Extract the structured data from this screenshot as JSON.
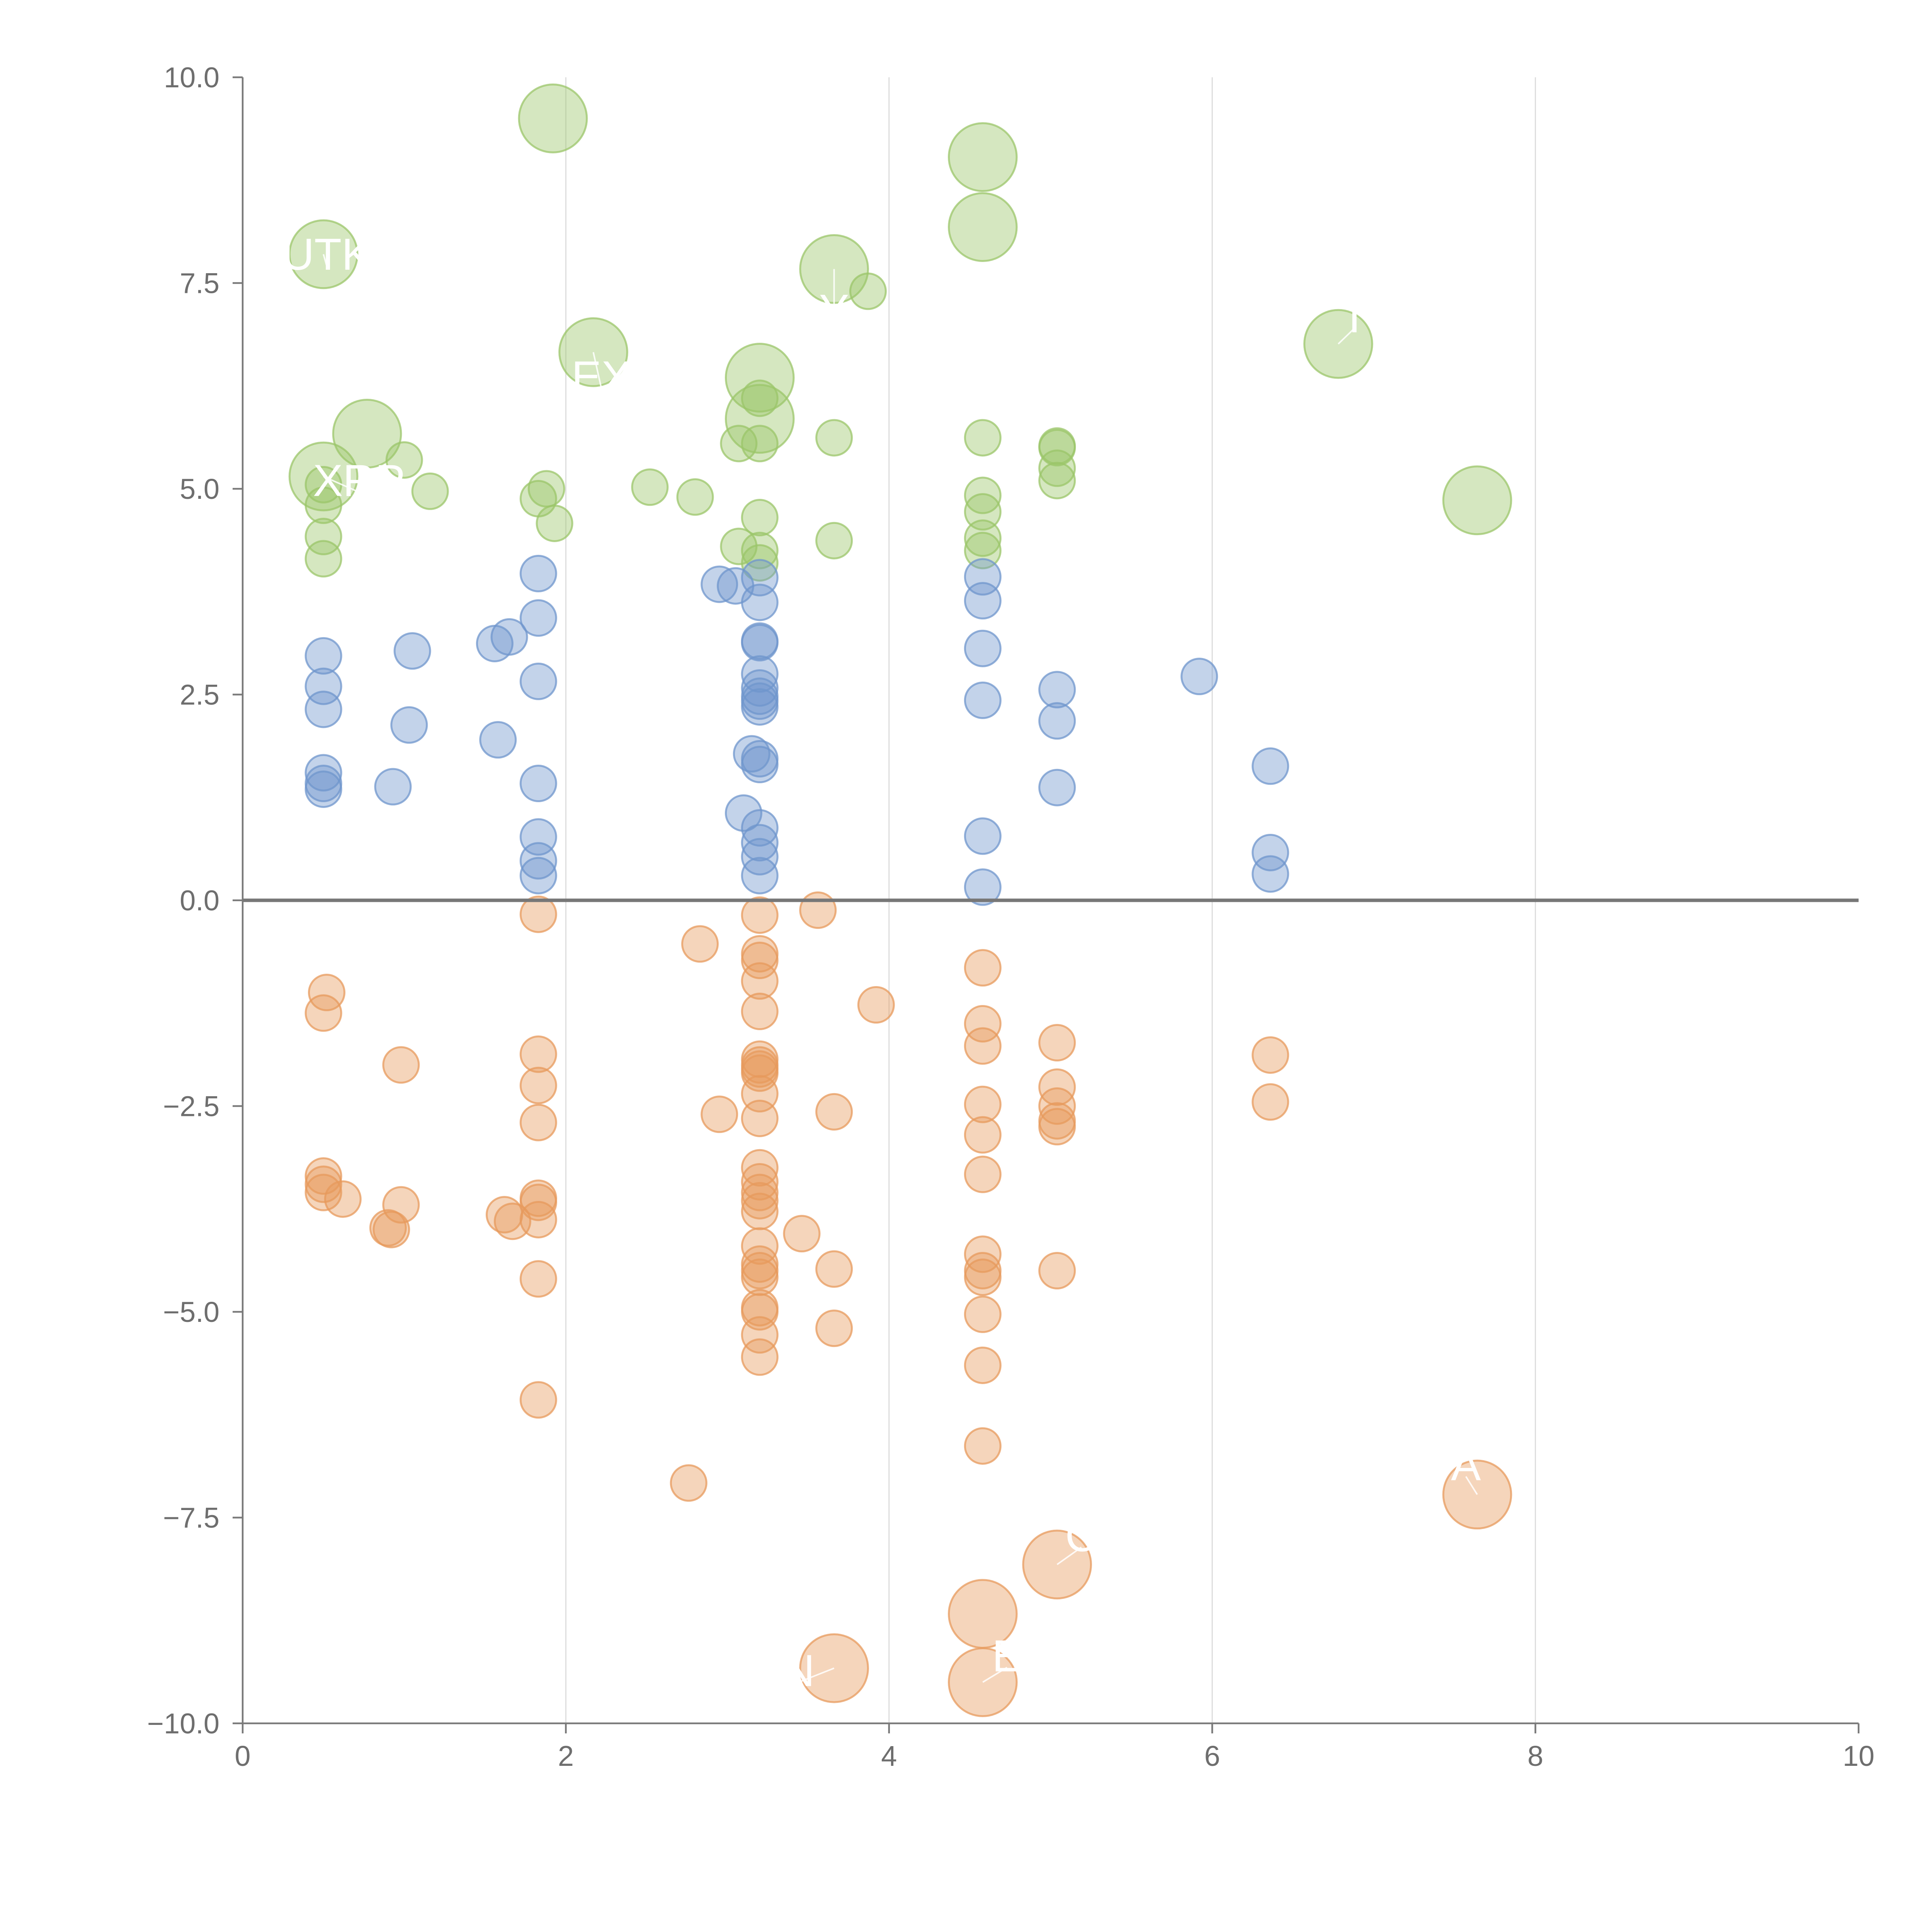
{
  "chart_data": {
    "type": "scatter",
    "title": "",
    "xlabel": "",
    "ylabel": "",
    "xlim": [
      0,
      10
    ],
    "ylim": [
      -10,
      10
    ],
    "x_ticks": [
      "0",
      "2",
      "4",
      "6",
      "8",
      "10"
    ],
    "y_ticks": [
      "10.0",
      "7.5",
      "5.0",
      "2.5",
      "0.0",
      "−2.5",
      "−5.0",
      "−7.5",
      "−10.0"
    ],
    "colors": {
      "green": "#9bc56a",
      "blue": "#6f96cc",
      "orange": "#e79a5c"
    },
    "series": [
      {
        "name": "green",
        "color": "#9bc56a",
        "points": [
          {
            "x": 0.5,
            "y": 4.15,
            "r": 0.11
          },
          {
            "x": 0.5,
            "y": 4.42,
            "r": 0.11
          },
          {
            "x": 0.5,
            "y": 4.8,
            "r": 0.11
          },
          {
            "x": 0.5,
            "y": 5.05,
            "r": 0.11
          },
          {
            "x": 1.0,
            "y": 5.35,
            "r": 0.11
          },
          {
            "x": 1.16,
            "y": 4.97,
            "r": 0.11
          },
          {
            "x": 1.83,
            "y": 4.88,
            "r": 0.11
          },
          {
            "x": 1.88,
            "y": 5.0,
            "r": 0.11
          },
          {
            "x": 1.93,
            "y": 4.58,
            "r": 0.11
          },
          {
            "x": 2.52,
            "y": 5.02,
            "r": 0.11
          },
          {
            "x": 2.8,
            "y": 4.9,
            "r": 0.11
          },
          {
            "x": 3.07,
            "y": 4.3,
            "r": 0.11
          },
          {
            "x": 3.07,
            "y": 5.55,
            "r": 0.11
          },
          {
            "x": 3.2,
            "y": 4.1,
            "r": 0.11
          },
          {
            "x": 3.2,
            "y": 4.25,
            "r": 0.11
          },
          {
            "x": 3.2,
            "y": 4.65,
            "r": 0.11
          },
          {
            "x": 3.2,
            "y": 5.55,
            "r": 0.11
          },
          {
            "x": 3.2,
            "y": 6.1,
            "r": 0.11
          },
          {
            "x": 3.66,
            "y": 4.37,
            "r": 0.11
          },
          {
            "x": 3.66,
            "y": 5.62,
            "r": 0.11
          },
          {
            "x": 3.87,
            "y": 7.4,
            "r": 0.11
          },
          {
            "x": 4.58,
            "y": 4.25,
            "r": 0.11
          },
          {
            "x": 4.58,
            "y": 4.4,
            "r": 0.11
          },
          {
            "x": 4.58,
            "y": 4.72,
            "r": 0.11
          },
          {
            "x": 4.58,
            "y": 4.92,
            "r": 0.11
          },
          {
            "x": 4.58,
            "y": 5.62,
            "r": 0.11
          },
          {
            "x": 5.04,
            "y": 5.1,
            "r": 0.11
          },
          {
            "x": 5.04,
            "y": 5.25,
            "r": 0.11
          },
          {
            "x": 5.04,
            "y": 5.5,
            "r": 0.11
          },
          {
            "x": 5.04,
            "y": 5.52,
            "r": 0.11
          },
          {
            "x": 0.5,
            "y": 7.85,
            "r": 0.21
          },
          {
            "x": 0.5,
            "y": 5.15,
            "r": 0.21
          },
          {
            "x": 0.77,
            "y": 5.67,
            "r": 0.21
          },
          {
            "x": 1.92,
            "y": 9.5,
            "r": 0.21
          },
          {
            "x": 2.17,
            "y": 6.66,
            "r": 0.21
          },
          {
            "x": 3.2,
            "y": 6.35,
            "r": 0.21
          },
          {
            "x": 3.2,
            "y": 5.85,
            "r": 0.21
          },
          {
            "x": 3.66,
            "y": 7.67,
            "r": 0.21
          },
          {
            "x": 4.58,
            "y": 9.03,
            "r": 0.21
          },
          {
            "x": 4.58,
            "y": 8.18,
            "r": 0.21
          },
          {
            "x": 6.78,
            "y": 6.76,
            "r": 0.21
          },
          {
            "x": 7.64,
            "y": 4.86,
            "r": 0.21
          }
        ]
      },
      {
        "name": "blue",
        "color": "#6f96cc",
        "points": [
          {
            "x": 0.5,
            "y": 1.35,
            "r": 0.11
          },
          {
            "x": 0.5,
            "y": 1.42,
            "r": 0.11
          },
          {
            "x": 0.5,
            "y": 1.55,
            "r": 0.11
          },
          {
            "x": 0.5,
            "y": 2.32,
            "r": 0.11
          },
          {
            "x": 0.5,
            "y": 2.6,
            "r": 0.11
          },
          {
            "x": 0.5,
            "y": 2.97,
            "r": 0.11
          },
          {
            "x": 0.93,
            "y": 1.38,
            "r": 0.11
          },
          {
            "x": 1.03,
            "y": 2.13,
            "r": 0.11
          },
          {
            "x": 1.05,
            "y": 3.03,
            "r": 0.11
          },
          {
            "x": 1.56,
            "y": 3.12,
            "r": 0.11
          },
          {
            "x": 1.58,
            "y": 1.95,
            "r": 0.11
          },
          {
            "x": 1.65,
            "y": 3.2,
            "r": 0.11
          },
          {
            "x": 1.83,
            "y": 0.3,
            "r": 0.11
          },
          {
            "x": 1.83,
            "y": 0.48,
            "r": 0.11
          },
          {
            "x": 1.83,
            "y": 0.77,
            "r": 0.11
          },
          {
            "x": 1.83,
            "y": 1.42,
            "r": 0.11
          },
          {
            "x": 1.83,
            "y": 2.66,
            "r": 0.11
          },
          {
            "x": 1.83,
            "y": 3.43,
            "r": 0.11
          },
          {
            "x": 1.83,
            "y": 3.97,
            "r": 0.11
          },
          {
            "x": 2.95,
            "y": 3.84,
            "r": 0.11
          },
          {
            "x": 3.05,
            "y": 3.82,
            "r": 0.11
          },
          {
            "x": 3.1,
            "y": 1.06,
            "r": 0.11
          },
          {
            "x": 3.15,
            "y": 1.78,
            "r": 0.11
          },
          {
            "x": 3.2,
            "y": 0.3,
            "r": 0.11
          },
          {
            "x": 3.2,
            "y": 0.53,
            "r": 0.11
          },
          {
            "x": 3.2,
            "y": 0.7,
            "r": 0.11
          },
          {
            "x": 3.2,
            "y": 0.88,
            "r": 0.11
          },
          {
            "x": 3.2,
            "y": 1.65,
            "r": 0.11
          },
          {
            "x": 3.2,
            "y": 1.72,
            "r": 0.11
          },
          {
            "x": 3.2,
            "y": 2.35,
            "r": 0.11
          },
          {
            "x": 3.2,
            "y": 2.42,
            "r": 0.11
          },
          {
            "x": 3.2,
            "y": 2.48,
            "r": 0.11
          },
          {
            "x": 3.2,
            "y": 2.58,
            "r": 0.11
          },
          {
            "x": 3.2,
            "y": 2.75,
            "r": 0.11
          },
          {
            "x": 3.2,
            "y": 3.13,
            "r": 0.11
          },
          {
            "x": 3.2,
            "y": 3.15,
            "r": 0.11
          },
          {
            "x": 3.2,
            "y": 3.62,
            "r": 0.11
          },
          {
            "x": 3.2,
            "y": 3.92,
            "r": 0.11
          },
          {
            "x": 4.58,
            "y": 0.16,
            "r": 0.11
          },
          {
            "x": 4.58,
            "y": 0.78,
            "r": 0.11
          },
          {
            "x": 4.58,
            "y": 2.43,
            "r": 0.11
          },
          {
            "x": 4.58,
            "y": 3.06,
            "r": 0.11
          },
          {
            "x": 4.58,
            "y": 3.64,
            "r": 0.11
          },
          {
            "x": 4.58,
            "y": 3.93,
            "r": 0.11
          },
          {
            "x": 5.04,
            "y": 1.37,
            "r": 0.11
          },
          {
            "x": 5.04,
            "y": 2.18,
            "r": 0.11
          },
          {
            "x": 5.04,
            "y": 2.56,
            "r": 0.11
          },
          {
            "x": 5.92,
            "y": 2.72,
            "r": 0.11
          },
          {
            "x": 6.36,
            "y": 0.32,
            "r": 0.11
          },
          {
            "x": 6.36,
            "y": 0.58,
            "r": 0.11
          },
          {
            "x": 6.36,
            "y": 1.63,
            "r": 0.11
          }
        ]
      },
      {
        "name": "orange",
        "color": "#e79a5c",
        "points": [
          {
            "x": 0.52,
            "y": -1.12,
            "r": 0.11
          },
          {
            "x": 0.5,
            "y": -1.37,
            "r": 0.11
          },
          {
            "x": 0.5,
            "y": -3.35,
            "r": 0.11
          },
          {
            "x": 0.5,
            "y": -3.45,
            "r": 0.11
          },
          {
            "x": 0.5,
            "y": -3.55,
            "r": 0.11
          },
          {
            "x": 0.62,
            "y": -3.63,
            "r": 0.11
          },
          {
            "x": 0.98,
            "y": -2.0,
            "r": 0.11
          },
          {
            "x": 0.98,
            "y": -3.7,
            "r": 0.11
          },
          {
            "x": 0.9,
            "y": -3.98,
            "r": 0.11
          },
          {
            "x": 0.92,
            "y": -4.0,
            "r": 0.11
          },
          {
            "x": 1.62,
            "y": -3.82,
            "r": 0.11
          },
          {
            "x": 1.67,
            "y": -3.9,
            "r": 0.11
          },
          {
            "x": 1.83,
            "y": -0.17,
            "r": 0.11
          },
          {
            "x": 1.83,
            "y": -1.87,
            "r": 0.11
          },
          {
            "x": 1.83,
            "y": -2.25,
            "r": 0.11
          },
          {
            "x": 1.83,
            "y": -2.7,
            "r": 0.11
          },
          {
            "x": 1.83,
            "y": -3.62,
            "r": 0.11
          },
          {
            "x": 1.83,
            "y": -3.67,
            "r": 0.11
          },
          {
            "x": 1.83,
            "y": -3.88,
            "r": 0.11
          },
          {
            "x": 1.83,
            "y": -4.6,
            "r": 0.11
          },
          {
            "x": 1.83,
            "y": -6.07,
            "r": 0.11
          },
          {
            "x": 2.76,
            "y": -7.08,
            "r": 0.11
          },
          {
            "x": 2.83,
            "y": -0.53,
            "r": 0.11
          },
          {
            "x": 2.95,
            "y": -2.6,
            "r": 0.11
          },
          {
            "x": 3.2,
            "y": -0.18,
            "r": 0.11
          },
          {
            "x": 3.2,
            "y": -0.65,
            "r": 0.11
          },
          {
            "x": 3.2,
            "y": -0.73,
            "r": 0.11
          },
          {
            "x": 3.2,
            "y": -0.98,
            "r": 0.11
          },
          {
            "x": 3.2,
            "y": -1.35,
            "r": 0.11
          },
          {
            "x": 3.2,
            "y": -1.93,
            "r": 0.11
          },
          {
            "x": 3.2,
            "y": -2.0,
            "r": 0.11
          },
          {
            "x": 3.2,
            "y": -2.05,
            "r": 0.11
          },
          {
            "x": 3.2,
            "y": -2.1,
            "r": 0.11
          },
          {
            "x": 3.2,
            "y": -2.35,
            "r": 0.11
          },
          {
            "x": 3.2,
            "y": -2.65,
            "r": 0.11
          },
          {
            "x": 3.2,
            "y": -3.25,
            "r": 0.11
          },
          {
            "x": 3.2,
            "y": -3.42,
            "r": 0.11
          },
          {
            "x": 3.2,
            "y": -3.55,
            "r": 0.11
          },
          {
            "x": 3.2,
            "y": -3.65,
            "r": 0.11
          },
          {
            "x": 3.2,
            "y": -3.78,
            "r": 0.11
          },
          {
            "x": 3.2,
            "y": -4.2,
            "r": 0.11
          },
          {
            "x": 3.2,
            "y": -4.42,
            "r": 0.11
          },
          {
            "x": 3.2,
            "y": -4.5,
            "r": 0.11
          },
          {
            "x": 3.2,
            "y": -4.58,
            "r": 0.11
          },
          {
            "x": 3.2,
            "y": -4.95,
            "r": 0.11
          },
          {
            "x": 3.2,
            "y": -5.0,
            "r": 0.11
          },
          {
            "x": 3.2,
            "y": -5.28,
            "r": 0.11
          },
          {
            "x": 3.2,
            "y": -5.55,
            "r": 0.11
          },
          {
            "x": 3.46,
            "y": -4.05,
            "r": 0.11
          },
          {
            "x": 3.56,
            "y": -0.12,
            "r": 0.11
          },
          {
            "x": 3.66,
            "y": -2.57,
            "r": 0.11
          },
          {
            "x": 3.66,
            "y": -4.48,
            "r": 0.11
          },
          {
            "x": 3.66,
            "y": -5.2,
            "r": 0.11
          },
          {
            "x": 3.92,
            "y": -1.27,
            "r": 0.11
          },
          {
            "x": 4.58,
            "y": -0.82,
            "r": 0.11
          },
          {
            "x": 4.58,
            "y": -1.5,
            "r": 0.11
          },
          {
            "x": 4.58,
            "y": -1.77,
            "r": 0.11
          },
          {
            "x": 4.58,
            "y": -2.48,
            "r": 0.11
          },
          {
            "x": 4.58,
            "y": -2.85,
            "r": 0.11
          },
          {
            "x": 4.58,
            "y": -3.33,
            "r": 0.11
          },
          {
            "x": 4.58,
            "y": -4.3,
            "r": 0.11
          },
          {
            "x": 4.58,
            "y": -4.5,
            "r": 0.11
          },
          {
            "x": 4.58,
            "y": -4.58,
            "r": 0.11
          },
          {
            "x": 4.58,
            "y": -5.03,
            "r": 0.11
          },
          {
            "x": 4.58,
            "y": -5.65,
            "r": 0.11
          },
          {
            "x": 4.58,
            "y": -6.63,
            "r": 0.11
          },
          {
            "x": 5.04,
            "y": -1.73,
            "r": 0.11
          },
          {
            "x": 5.04,
            "y": -2.27,
            "r": 0.11
          },
          {
            "x": 5.04,
            "y": -2.5,
            "r": 0.11
          },
          {
            "x": 5.04,
            "y": -2.68,
            "r": 0.11
          },
          {
            "x": 5.04,
            "y": -2.75,
            "r": 0.11
          },
          {
            "x": 5.04,
            "y": -4.5,
            "r": 0.11
          },
          {
            "x": 6.36,
            "y": -1.88,
            "r": 0.11
          },
          {
            "x": 6.36,
            "y": -2.45,
            "r": 0.11
          },
          {
            "x": 3.66,
            "y": -9.33,
            "r": 0.21
          },
          {
            "x": 4.58,
            "y": -8.67,
            "r": 0.21
          },
          {
            "x": 4.58,
            "y": -9.5,
            "r": 0.21
          },
          {
            "x": 5.04,
            "y": -8.07,
            "r": 0.21
          },
          {
            "x": 7.64,
            "y": -7.22,
            "r": 0.21
          }
        ]
      }
    ],
    "annotations": [
      {
        "text": "UTK",
        "x": 0.5,
        "y": 7.85,
        "dx": 0.02,
        "dy": 0.0,
        "anchor": "middle"
      },
      {
        "text": "XRP",
        "x": 0.5,
        "y": 5.15,
        "dx": 0.22,
        "dy": -0.05,
        "anchor": "middle"
      },
      {
        "text": "EX",
        "x": 2.17,
        "y": 6.66,
        "dx": 0.05,
        "dy": -0.3,
        "anchor": "middle"
      },
      {
        "text": "Y",
        "x": 3.66,
        "y": 7.67,
        "dx": 0.0,
        "dy": -0.5,
        "anchor": "middle"
      },
      {
        "text": "I",
        "x": 6.78,
        "y": 6.76,
        "dx": 0.1,
        "dy": 0.33,
        "anchor": "middle"
      },
      {
        "text": "A",
        "x": 7.64,
        "y": -7.22,
        "dx": -0.07,
        "dy": 0.36,
        "anchor": "middle"
      },
      {
        "text": "C",
        "x": 5.04,
        "y": -8.07,
        "dx": 0.15,
        "dy": 0.35,
        "anchor": "middle"
      },
      {
        "text": "N",
        "x": 3.66,
        "y": -9.33,
        "dx": -0.22,
        "dy": -0.03,
        "anchor": "middle"
      },
      {
        "text": "E",
        "x": 4.58,
        "y": -9.5,
        "dx": 0.15,
        "dy": 0.32,
        "anchor": "middle"
      }
    ]
  }
}
